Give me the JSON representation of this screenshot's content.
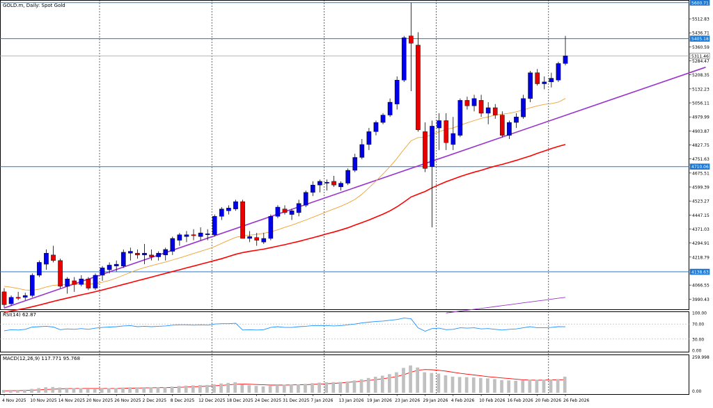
{
  "chart_data": {
    "type": "candlestick",
    "title": "GOLD.m, Daily:  Spot Gold",
    "colors": {
      "bull": "#0000e6",
      "bear": "#e60000",
      "ma_fast": "#f0a030",
      "ma_slow": "#ff0000",
      "trendline": "#9933cc",
      "hline": "#1e78d2",
      "rsi": "#1e90ff",
      "macd_hist": "#c0c0c0",
      "macd_signal": "#ff0000"
    },
    "y_ticks": [
      "5512.83",
      "5436.71",
      "5360.59",
      "5284.47",
      "5208.35",
      "5132.23",
      "5056.11",
      "4979.99",
      "4903.87",
      "4827.75",
      "4751.63",
      "4675.51",
      "4599.39",
      "4523.27",
      "4447.15",
      "4371.03",
      "4294.91",
      "4218.79",
      "4066.55",
      "3990.43"
    ],
    "ylim": [
      3935,
      5615
    ],
    "price_labels": [
      "5600.71",
      "5405.18",
      "5311.46",
      "4710.06",
      "4138.63"
    ],
    "x_labels": [
      "4 Nov 2025",
      "10 Nov 2025",
      "14 Nov 2025",
      "20 Nov 2025",
      "26 Nov 2025",
      "2 Dec 2025",
      "8 Dec 2025",
      "12 Dec 2025",
      "18 Dec 2025",
      "24 Dec 2025",
      "31 Dec 2025",
      "7 Jan 2026",
      "13 Jan 2026",
      "19 Jan 2026",
      "23 Jan 2026",
      "29 Jan 2026",
      "4 Feb 2026",
      "10 Feb 2026",
      "16 Feb 2026",
      "20 Feb 2026",
      "26 Feb 2026"
    ],
    "candles": [
      [
        4030,
        4050,
        3945,
        3960
      ],
      [
        3965,
        4010,
        3955,
        4000
      ],
      [
        4000,
        4030,
        3985,
        3995
      ],
      [
        4000,
        4025,
        3985,
        4010
      ],
      [
        4010,
        4130,
        4000,
        4120
      ],
      [
        4120,
        4200,
        4110,
        4190
      ],
      [
        4180,
        4260,
        4150,
        4240
      ],
      [
        4230,
        4280,
        4190,
        4200
      ],
      [
        4200,
        4210,
        4050,
        4060
      ],
      [
        4060,
        4110,
        4020,
        4100
      ],
      [
        4090,
        4110,
        4030,
        4070
      ],
      [
        4070,
        4120,
        4060,
        4100
      ],
      [
        4100,
        4110,
        4040,
        4050
      ],
      [
        4050,
        4130,
        4040,
        4120
      ],
      [
        4120,
        4170,
        4090,
        4160
      ],
      [
        4150,
        4190,
        4130,
        4175
      ],
      [
        4170,
        4200,
        4140,
        4180
      ],
      [
        4170,
        4260,
        4160,
        4245
      ],
      [
        4240,
        4270,
        4200,
        4250
      ],
      [
        4240,
        4260,
        4210,
        4230
      ],
      [
        4230,
        4290,
        4180,
        4240
      ],
      [
        4230,
        4260,
        4200,
        4220
      ],
      [
        4220,
        4250,
        4200,
        4240
      ],
      [
        4230,
        4270,
        4200,
        4260
      ],
      [
        4250,
        4330,
        4230,
        4320
      ],
      [
        4310,
        4350,
        4280,
        4340
      ],
      [
        4330,
        4360,
        4300,
        4340
      ],
      [
        4340,
        4370,
        4310,
        4335
      ],
      [
        4330,
        4380,
        4310,
        4350
      ],
      [
        4340,
        4370,
        4310,
        4345
      ],
      [
        4340,
        4450,
        4330,
        4440
      ],
      [
        4440,
        4490,
        4420,
        4480
      ],
      [
        4470,
        4500,
        4450,
        4485
      ],
      [
        4480,
        4530,
        4470,
        4520
      ],
      [
        4520,
        4530,
        4320,
        4320
      ],
      [
        4320,
        4360,
        4300,
        4330
      ],
      [
        4325,
        4350,
        4280,
        4310
      ],
      [
        4300,
        4350,
        4290,
        4320
      ],
      [
        4320,
        4450,
        4310,
        4440
      ],
      [
        4440,
        4500,
        4430,
        4490
      ],
      [
        4480,
        4500,
        4450,
        4460
      ],
      [
        4450,
        4480,
        4420,
        4470
      ],
      [
        4460,
        4530,
        4440,
        4510
      ],
      [
        4500,
        4580,
        4490,
        4570
      ],
      [
        4570,
        4630,
        4550,
        4610
      ],
      [
        4610,
        4640,
        4570,
        4630
      ],
      [
        4620,
        4640,
        4580,
        4625
      ],
      [
        4630,
        4660,
        4600,
        4610
      ],
      [
        4600,
        4630,
        4580,
        4620
      ],
      [
        4620,
        4700,
        4610,
        4690
      ],
      [
        4690,
        4780,
        4680,
        4760
      ],
      [
        4760,
        4860,
        4750,
        4830
      ],
      [
        4830,
        4920,
        4800,
        4900
      ],
      [
        4900,
        4960,
        4880,
        4950
      ],
      [
        4950,
        5000,
        4940,
        4990
      ],
      [
        4990,
        5080,
        4980,
        5060
      ],
      [
        5050,
        5200,
        5020,
        5180
      ],
      [
        5180,
        5420,
        5170,
        5410
      ],
      [
        5420,
        5600,
        5120,
        5380
      ],
      [
        5370,
        5440,
        4900,
        4910
      ],
      [
        4900,
        4950,
        4680,
        4700
      ],
      [
        4710,
        4960,
        4380,
        4930
      ],
      [
        4920,
        5000,
        4800,
        4960
      ],
      [
        4960,
        5000,
        4800,
        4840
      ],
      [
        4830,
        4980,
        4800,
        4890
      ],
      [
        4880,
        5080,
        4870,
        5070
      ],
      [
        5070,
        5090,
        5020,
        5040
      ],
      [
        5040,
        5100,
        5010,
        5080
      ],
      [
        5070,
        5100,
        4980,
        5000
      ],
      [
        5000,
        5060,
        4940,
        5030
      ],
      [
        5030,
        5050,
        4970,
        4990
      ],
      [
        4990,
        5010,
        4870,
        4880
      ],
      [
        4880,
        4960,
        4860,
        4950
      ],
      [
        4950,
        5000,
        4920,
        4980
      ],
      [
        4980,
        5100,
        4970,
        5080
      ],
      [
        5080,
        5230,
        5060,
        5220
      ],
      [
        5220,
        5240,
        5150,
        5160
      ],
      [
        5160,
        5200,
        5130,
        5170
      ],
      [
        5170,
        5220,
        5140,
        5190
      ],
      [
        5180,
        5280,
        5170,
        5270
      ],
      [
        5270,
        5420,
        5260,
        5311.46
      ]
    ],
    "rsi": {
      "label": "RSI(14) 62.87",
      "levels": [
        "100.00",
        "70.00",
        "30.00",
        "0.00"
      ],
      "values": [
        52,
        55,
        54,
        56,
        62,
        63,
        64,
        62,
        55,
        57,
        56,
        58,
        56,
        59,
        61,
        62,
        63,
        65,
        66,
        63,
        64,
        63,
        64,
        65,
        67,
        68,
        68,
        67,
        68,
        67,
        70,
        71,
        71,
        72,
        54,
        55,
        54,
        55,
        61,
        63,
        61,
        61,
        63,
        64,
        66,
        66,
        66,
        65,
        66,
        68,
        70,
        73,
        75,
        77,
        78,
        80,
        82,
        86,
        84,
        60,
        51,
        58,
        59,
        55,
        56,
        60,
        59,
        60,
        57,
        58,
        56,
        54,
        56,
        57,
        60,
        63,
        60,
        60,
        61,
        63,
        62.87
      ]
    },
    "macd": {
      "label": "MACD(12,26,9) 117.771 95.768",
      "levels": [
        "259.998",
        "0.00"
      ],
      "hist": [
        20,
        21,
        21,
        22,
        28,
        34,
        40,
        42,
        38,
        36,
        34,
        33,
        30,
        30,
        32,
        33,
        34,
        38,
        40,
        40,
        41,
        40,
        40,
        41,
        45,
        49,
        52,
        54,
        56,
        57,
        62,
        68,
        72,
        77,
        62,
        55,
        50,
        46,
        50,
        56,
        58,
        58,
        61,
        65,
        70,
        74,
        77,
        78,
        79,
        83,
        90,
        98,
        108,
        117,
        125,
        136,
        150,
        182,
        200,
        185,
        150,
        145,
        140,
        128,
        118,
        115,
        114,
        112,
        108,
        105,
        100,
        92,
        90,
        88,
        90,
        97,
        96,
        95,
        96,
        100,
        117.771
      ],
      "signal": [
        14,
        15,
        16,
        17,
        19,
        21,
        24,
        26,
        28,
        30,
        31,
        31,
        31,
        31,
        31,
        31,
        31,
        32,
        33,
        34,
        35,
        36,
        37,
        37,
        38,
        40,
        42,
        44,
        46,
        48,
        51,
        54,
        58,
        62,
        63,
        62,
        60,
        58,
        56,
        56,
        56,
        57,
        58,
        59,
        61,
        63,
        66,
        69,
        72,
        76,
        80,
        85,
        90,
        96,
        103,
        110,
        119,
        133,
        150,
        165,
        170,
        168,
        164,
        158,
        150,
        142,
        136,
        130,
        124,
        118,
        113,
        108,
        104,
        99,
        95,
        93,
        92,
        93,
        94,
        95,
        95.768
      ]
    },
    "ma_fast": [
      4060,
      4055,
      4048,
      4040,
      4038,
      4045,
      4056,
      4065,
      4068,
      4070,
      4072,
      4072,
      4072,
      4075,
      4082,
      4092,
      4105,
      4120,
      4135,
      4150,
      4162,
      4172,
      4182,
      4192,
      4203,
      4214,
      4226,
      4238,
      4250,
      4262,
      4276,
      4293,
      4310,
      4326,
      4334,
      4338,
      4342,
      4348,
      4356,
      4367,
      4380,
      4392,
      4406,
      4420,
      4435,
      4450,
      4465,
      4480,
      4495,
      4512,
      4532,
      4560,
      4595,
      4632,
      4670,
      4710,
      4755,
      4805,
      4850,
      4868,
      4870,
      4885,
      4900,
      4912,
      4920,
      4935,
      4948,
      4960,
      4972,
      4980,
      4990,
      4995,
      5000,
      5008,
      5018,
      5030,
      5040,
      5048,
      5052,
      5060,
      5080
    ],
    "ma_slow": [
      3918,
      3926,
      3933,
      3940,
      3949,
      3958,
      3968,
      3978,
      3987,
      3996,
      4005,
      4014,
      4022,
      4031,
      4040,
      4050,
      4060,
      4070,
      4080,
      4090,
      4100,
      4110,
      4120,
      4130,
      4140,
      4150,
      4160,
      4170,
      4180,
      4190,
      4200,
      4210,
      4222,
      4234,
      4243,
      4250,
      4256,
      4262,
      4270,
      4278,
      4286,
      4295,
      4304,
      4314,
      4324,
      4334,
      4345,
      4355,
      4366,
      4378,
      4392,
      4406,
      4420,
      4436,
      4452,
      4470,
      4492,
      4518,
      4545,
      4560,
      4575,
      4595,
      4612,
      4628,
      4642,
      4656,
      4668,
      4680,
      4690,
      4702,
      4713,
      4722,
      4733,
      4744,
      4756,
      4768,
      4782,
      4795,
      4808,
      4820,
      4830
    ],
    "ma_long": [
      3915,
      3920,
      3925,
      3930,
      3935,
      3940,
      3945,
      3950,
      3955,
      3960,
      3965,
      3970,
      3975,
      3980,
      3985,
      3990,
      3995,
      4000
    ],
    "trendline": {
      "start": [
        0,
        3942
      ],
      "end": [
        100,
        5250
      ]
    },
    "hlines": [
      5600.71,
      5405.18,
      4710.06,
      4138.63
    ],
    "current_price": 5311.46,
    "vlines_at_index": [
      13,
      29,
      45,
      61,
      77
    ]
  }
}
